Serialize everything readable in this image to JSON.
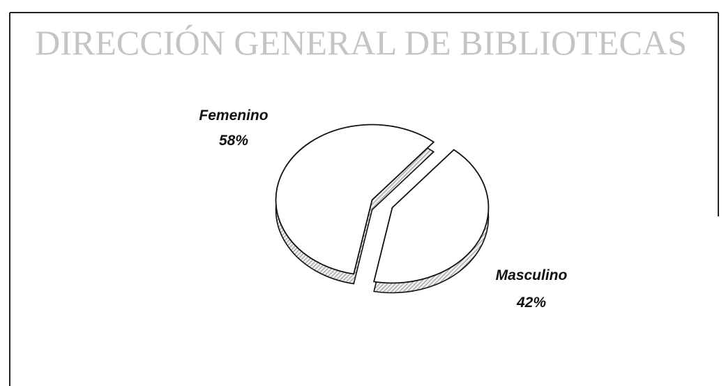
{
  "watermark": "DIRECCIÓN GENERAL DE BIBLIOTECAS",
  "chart_data": {
    "type": "pie",
    "categories": [
      "Femenino",
      "Masculino"
    ],
    "values": [
      58,
      42
    ],
    "value_labels": [
      "58%",
      "42%"
    ],
    "color": "#ffffff"
  }
}
